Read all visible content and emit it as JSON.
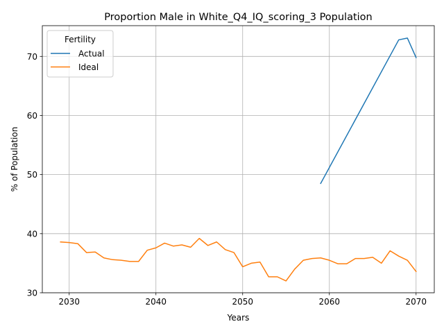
{
  "chart_data": {
    "type": "line",
    "title": "Proportion Male in White_Q4_IQ_scoring_3 Population",
    "xlabel": "Years",
    "ylabel": "% of Population",
    "xlim": [
      2026.9,
      2072.1
    ],
    "ylim": [
      30,
      75.2
    ],
    "xticks": [
      2030,
      2040,
      2050,
      2060,
      2070
    ],
    "yticks": [
      30,
      40,
      50,
      60,
      70
    ],
    "grid": true,
    "legend": {
      "title": "Fertility",
      "placement": "upper-left"
    },
    "series": [
      {
        "name": "Actual",
        "color": "#1f77b4",
        "x": [
          2059,
          2068,
          2069,
          2070
        ],
        "y": [
          48.5,
          72.8,
          73.1,
          69.8
        ]
      },
      {
        "name": "Ideal",
        "color": "#ff7f0e",
        "x": [
          2029,
          2030,
          2031,
          2032,
          2033,
          2034,
          2035,
          2036,
          2037,
          2038,
          2039,
          2040,
          2041,
          2042,
          2043,
          2044,
          2045,
          2046,
          2047,
          2048,
          2049,
          2050,
          2051,
          2052,
          2053,
          2054,
          2055,
          2056,
          2057,
          2058,
          2059,
          2060,
          2061,
          2062,
          2063,
          2064,
          2065,
          2066,
          2067,
          2068,
          2069,
          2070
        ],
        "y": [
          38.6,
          38.5,
          38.3,
          36.8,
          36.9,
          35.9,
          35.6,
          35.5,
          35.3,
          35.3,
          37.2,
          37.6,
          38.4,
          37.9,
          38.1,
          37.7,
          39.2,
          38.0,
          38.6,
          37.3,
          36.8,
          34.4,
          35.0,
          35.2,
          32.7,
          32.7,
          32.0,
          34.0,
          35.5,
          35.8,
          35.9,
          35.5,
          34.9,
          34.9,
          35.8,
          35.8,
          36.0,
          35.0,
          37.1,
          36.2,
          35.5,
          33.6
        ]
      }
    ]
  }
}
